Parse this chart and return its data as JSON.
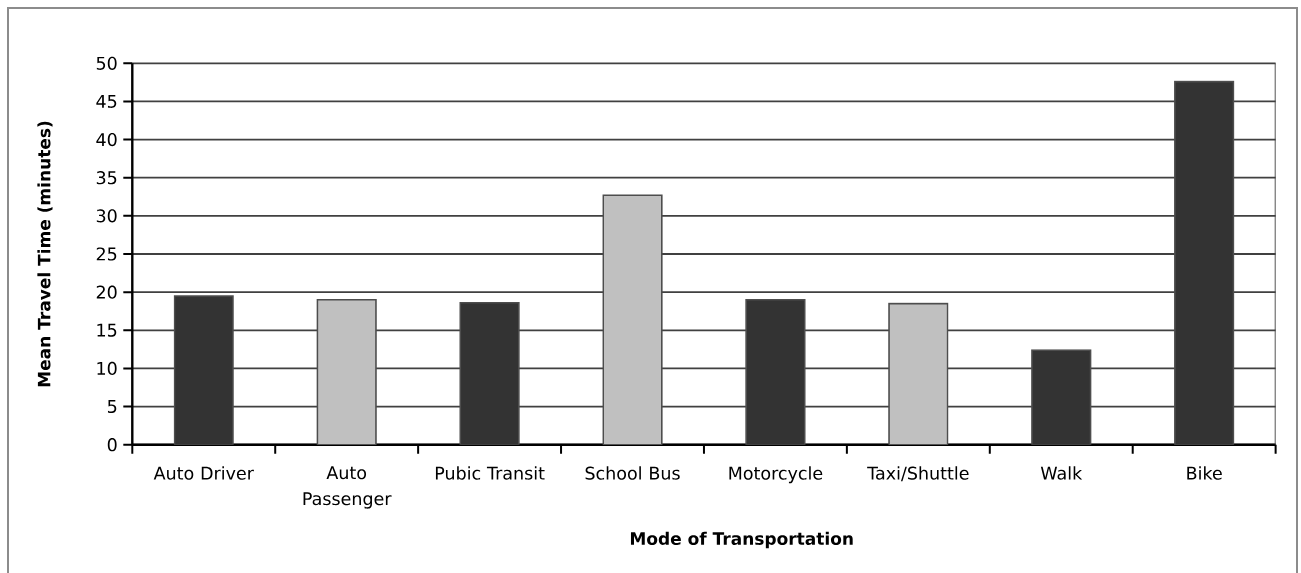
{
  "chart_data": {
    "type": "bar",
    "xlabel": "Mode of Transportation",
    "ylabel": "Mean Travel Time (minutes)",
    "categories": [
      "Auto Driver",
      "Auto Passenger",
      "Pubic Transit",
      "School Bus",
      "Motorcycle",
      "Taxi/Shuttle",
      "Walk",
      "Bike"
    ],
    "values": [
      19.5,
      19.0,
      18.6,
      32.7,
      19.0,
      18.5,
      12.4,
      47.6
    ],
    "colors": [
      "#333333",
      "#c0c0c0",
      "#333333",
      "#c0c0c0",
      "#333333",
      "#c0c0c0",
      "#333333",
      "#333333"
    ],
    "ylim": [
      0,
      50
    ],
    "yticks": [
      0,
      5,
      10,
      15,
      20,
      25,
      30,
      35,
      40,
      45,
      50
    ],
    "grid": "y"
  }
}
